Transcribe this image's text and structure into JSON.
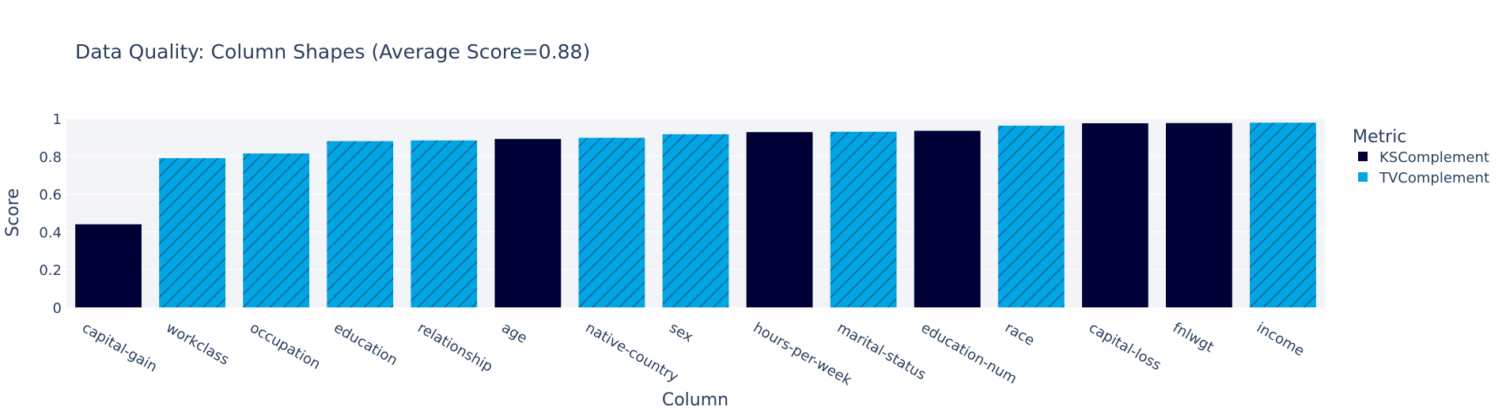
{
  "chart_data": {
    "type": "bar",
    "title": "Data Quality: Column Shapes (Average Score=0.88)",
    "xlabel": "Column",
    "ylabel": "Score",
    "ylim": [
      0,
      1
    ],
    "yticks": [
      0,
      0.2,
      0.4,
      0.6,
      0.8,
      1
    ],
    "ytick_labels": [
      "0",
      "0.2",
      "0.4",
      "0.6",
      "0.8",
      "1"
    ],
    "grid": true,
    "legend": {
      "title": "Metric",
      "placement": "right",
      "entries": [
        {
          "name": "KSComplement",
          "color": "#000036",
          "pattern": "solid"
        },
        {
          "name": "TVComplement",
          "color": "#01a4e4",
          "pattern": "diagonal-hatch"
        }
      ]
    },
    "categories": [
      "capital-gain",
      "workclass",
      "occupation",
      "education",
      "relationship",
      "age",
      "native-country",
      "sex",
      "hours-per-week",
      "marital-status",
      "education-num",
      "race",
      "capital-loss",
      "fnlwgt",
      "income"
    ],
    "values": [
      0.44,
      0.79,
      0.815,
      0.88,
      0.884,
      0.892,
      0.898,
      0.917,
      0.928,
      0.93,
      0.935,
      0.962,
      0.975,
      0.976,
      0.978
    ],
    "metric": [
      "KSComplement",
      "TVComplement",
      "TVComplement",
      "TVComplement",
      "TVComplement",
      "KSComplement",
      "TVComplement",
      "TVComplement",
      "KSComplement",
      "TVComplement",
      "KSComplement",
      "TVComplement",
      "KSComplement",
      "KSComplement",
      "TVComplement"
    ]
  },
  "colors": {
    "plot_bg": "#f3f4f7",
    "grid": "#ffffff",
    "text": "#2a3f5f",
    "ks": "#000036",
    "tv": "#01a4e4"
  }
}
